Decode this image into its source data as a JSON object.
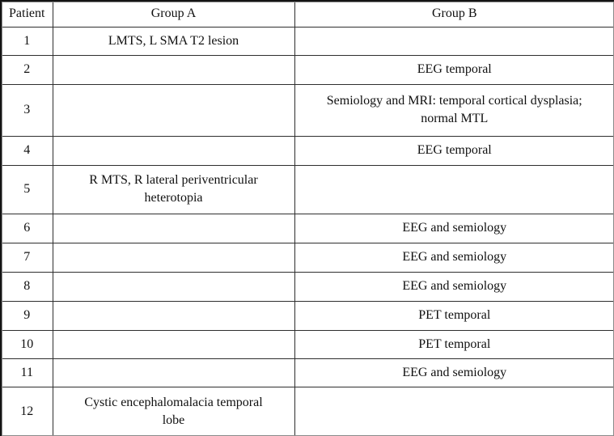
{
  "table": {
    "headers": [
      "Patient",
      "Group A",
      "Group B"
    ],
    "rows": [
      {
        "patient": "1",
        "group_a": "LMTS, L SMA T2 lesion",
        "group_b": ""
      },
      {
        "patient": "2",
        "group_a": "",
        "group_b": "EEG temporal"
      },
      {
        "patient": "3",
        "group_a": "",
        "group_b": "Semiology and MRI: temporal cortical dysplasia;\nnormal MTL"
      },
      {
        "patient": "4",
        "group_a": "",
        "group_b": "EEG temporal"
      },
      {
        "patient": "5",
        "group_a": "R MTS, R lateral periventricular\nheterotopia",
        "group_b": ""
      },
      {
        "patient": "6",
        "group_a": "",
        "group_b": "EEG and semiology"
      },
      {
        "patient": "7",
        "group_a": "",
        "group_b": "EEG and semiology"
      },
      {
        "patient": "8",
        "group_a": "",
        "group_b": "EEG and semiology"
      },
      {
        "patient": "9",
        "group_a": "",
        "group_b": "PET temporal"
      },
      {
        "patient": "10",
        "group_a": "",
        "group_b": "PET temporal"
      },
      {
        "patient": "11",
        "group_a": "",
        "group_b": "EEG and semiology"
      },
      {
        "patient": "12",
        "group_a": "Cystic encephalomalacia temporal\nlobe",
        "group_b": ""
      }
    ]
  },
  "colors": {
    "background": "#ffffff",
    "text": "#101010",
    "outer_border": "#141414",
    "inner_border": "#2e2e2e"
  }
}
